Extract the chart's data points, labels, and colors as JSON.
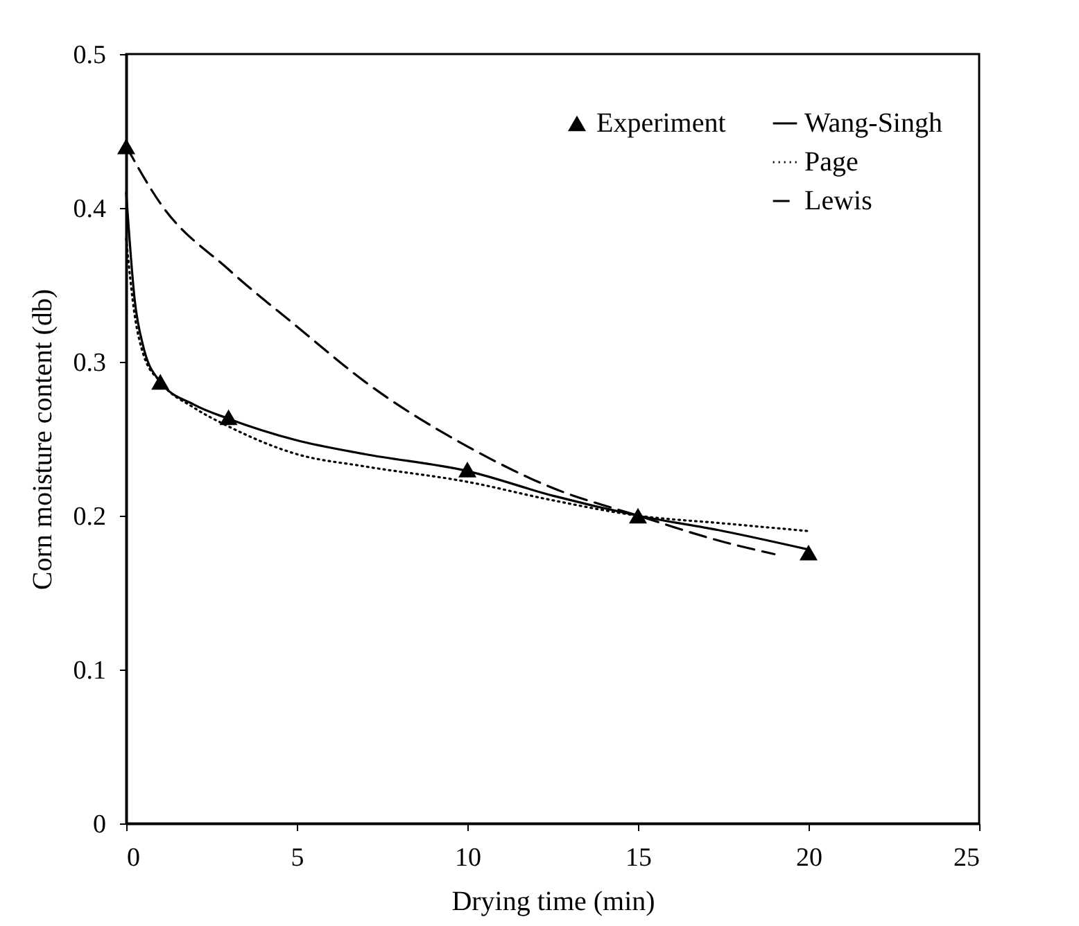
{
  "chart_data": {
    "type": "line",
    "xlabel": "Drying  time (min)",
    "ylabel": "Corn moisture content (db)",
    "xlim": [
      0,
      25
    ],
    "xticks": [
      0,
      5,
      10,
      15,
      20,
      25
    ],
    "ylim": [
      0,
      0.5
    ],
    "yticks": [
      0,
      0.1,
      0.2,
      0.3,
      0.4,
      0.5
    ],
    "legend": "top right",
    "series": [
      {
        "name": "Experiment",
        "type": "scatter",
        "marker": "triangle",
        "color": "#000000",
        "x": [
          0,
          1,
          3,
          10,
          15,
          20
        ],
        "values": [
          0.44,
          0.287,
          0.264,
          0.23,
          0.2,
          0.176
        ]
      },
      {
        "name": "Wang-Singh",
        "type": "line",
        "line_style": "solid",
        "color": "#000000",
        "x": [
          0,
          0.25,
          0.5,
          1,
          2,
          3,
          5,
          7,
          10,
          12.5,
          15,
          17.5,
          20
        ],
        "values": [
          0.41,
          0.34,
          0.31,
          0.287,
          0.272,
          0.263,
          0.249,
          0.24,
          0.229,
          0.213,
          0.2,
          0.19,
          0.178
        ]
      },
      {
        "name": "Page",
        "type": "line",
        "line_style": "dotted",
        "color": "#000000",
        "x": [
          0,
          0.25,
          0.5,
          1,
          2,
          3,
          5,
          7,
          10,
          12.5,
          15,
          17.5,
          20
        ],
        "values": [
          0.38,
          0.33,
          0.305,
          0.287,
          0.27,
          0.258,
          0.24,
          0.232,
          0.222,
          0.21,
          0.2,
          0.195,
          0.19
        ]
      },
      {
        "name": "Lewis",
        "type": "line",
        "line_style": "dashed",
        "color": "#000000",
        "x": [
          0,
          1,
          3,
          5,
          7,
          10,
          12.5,
          15,
          17.5,
          19
        ],
        "values": [
          0.44,
          0.403,
          0.36,
          0.323,
          0.287,
          0.245,
          0.218,
          0.2,
          0.183,
          0.175
        ]
      }
    ]
  }
}
